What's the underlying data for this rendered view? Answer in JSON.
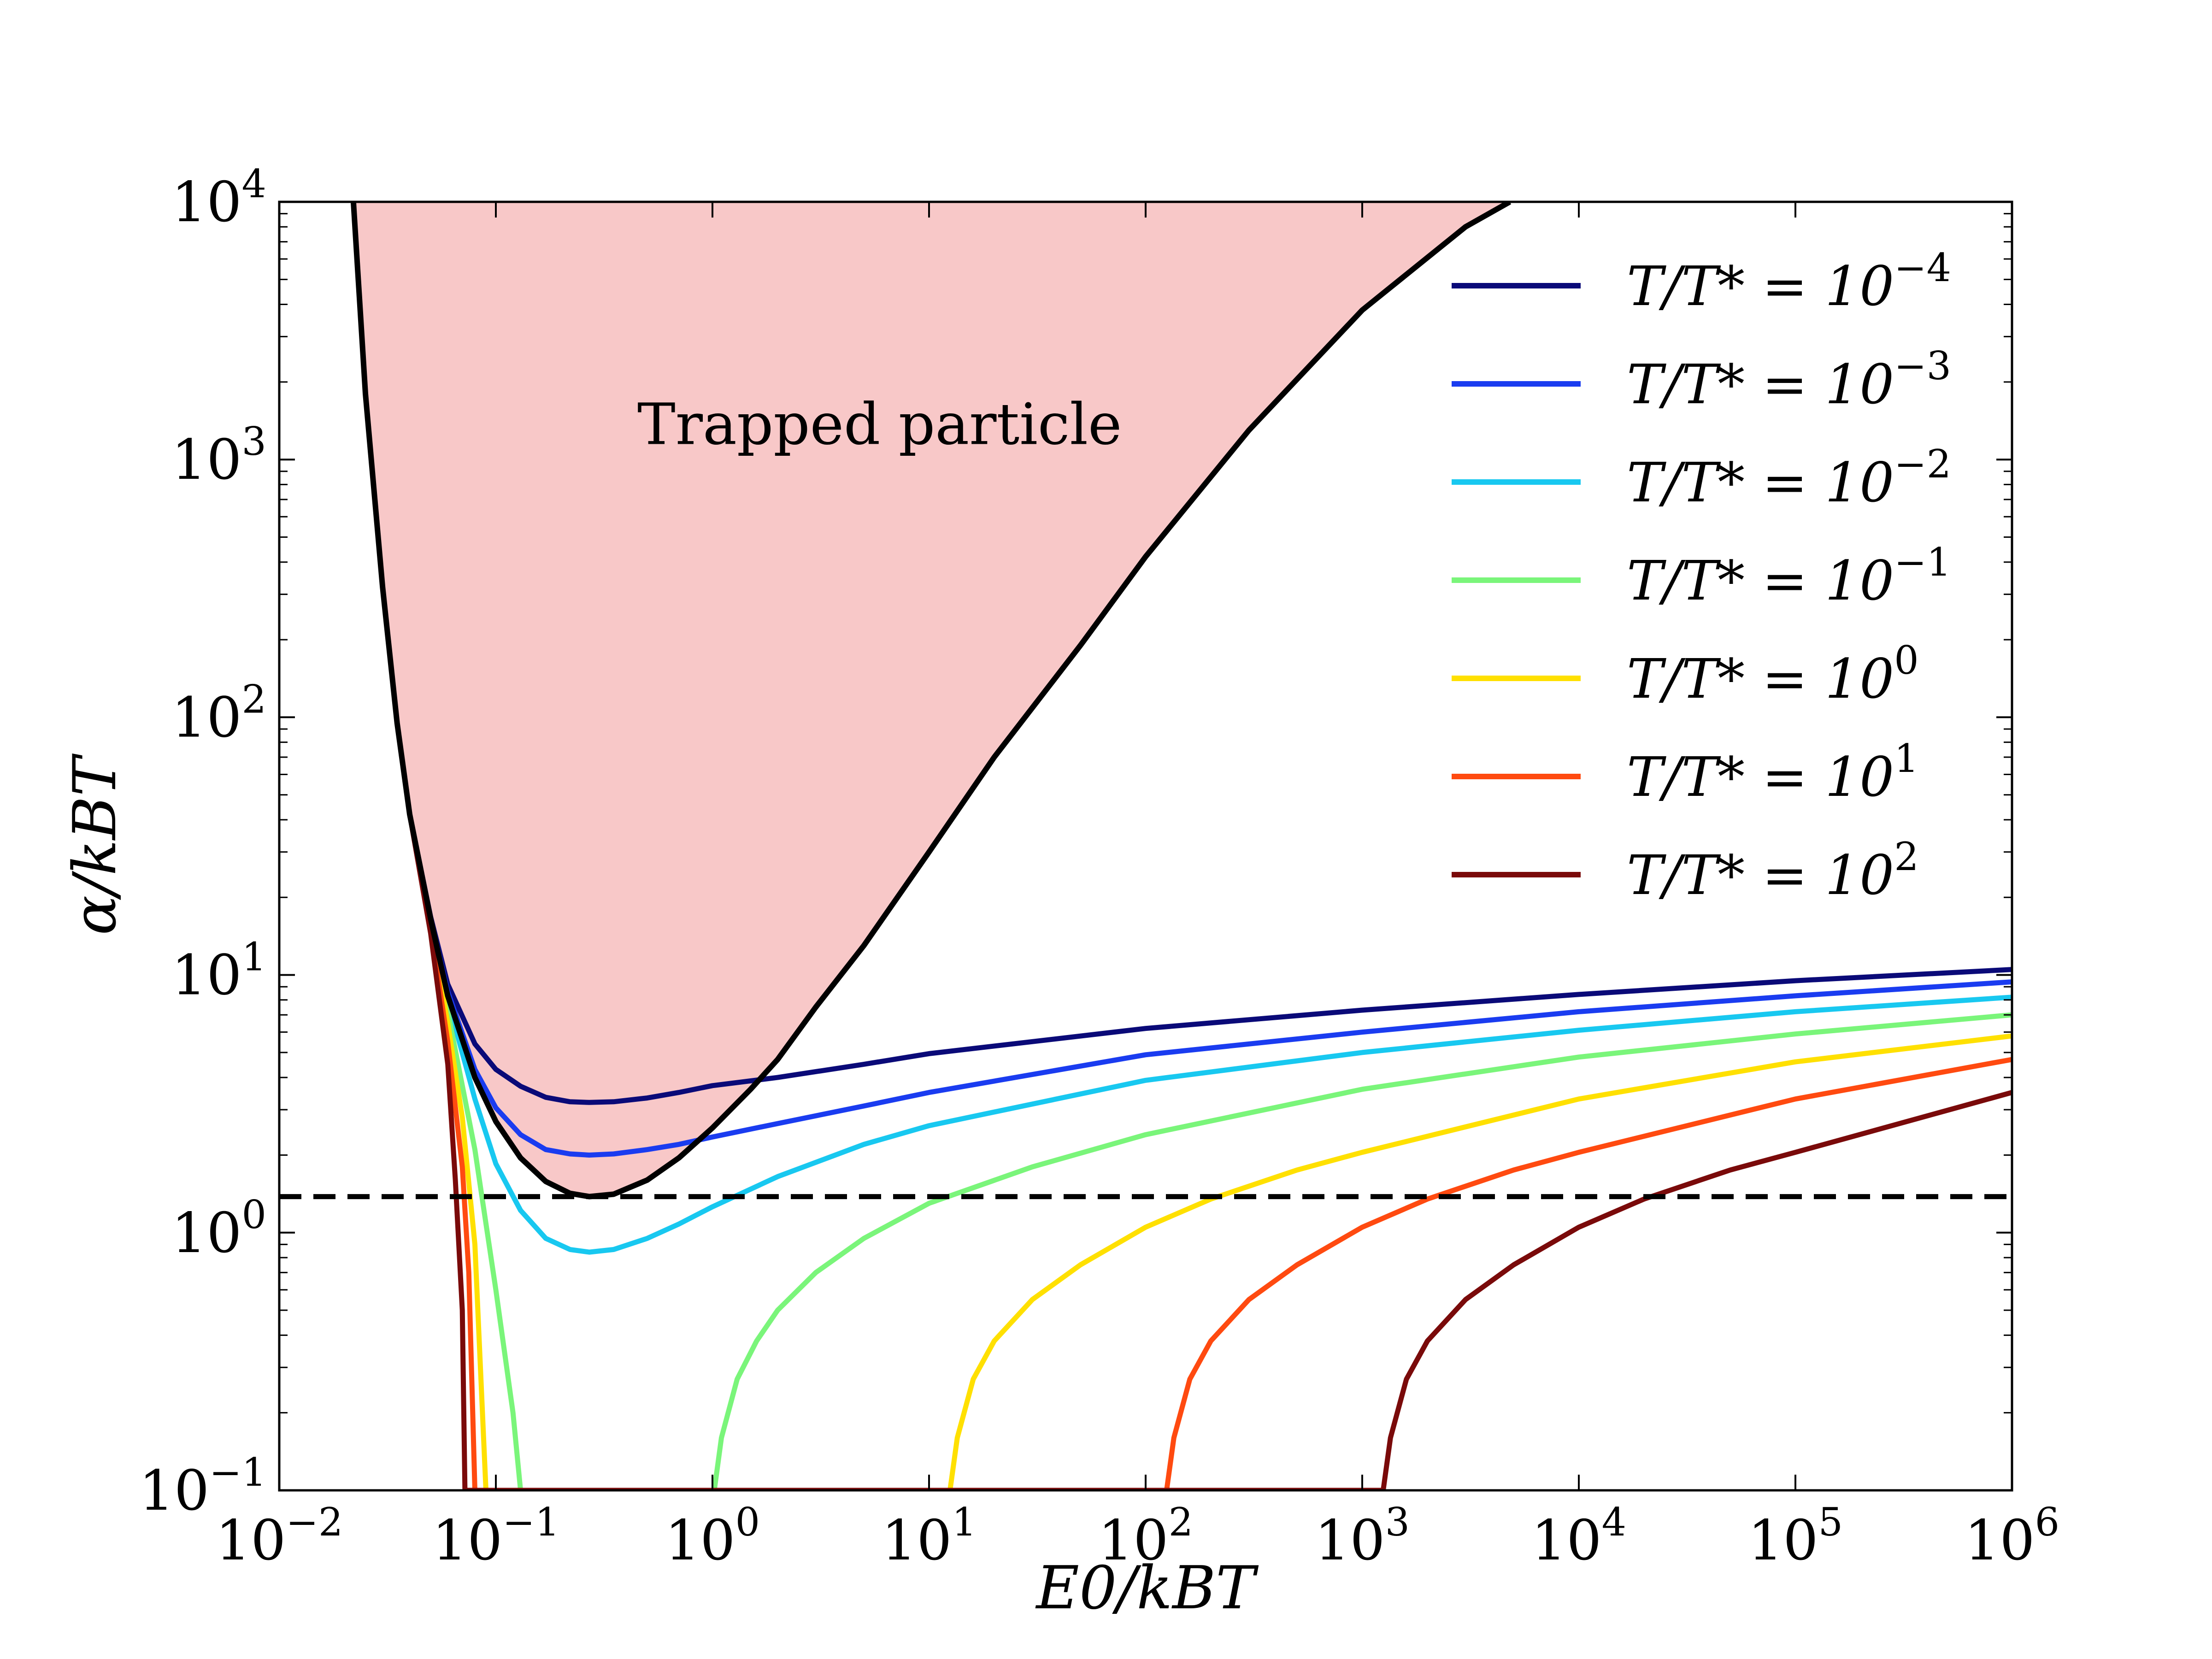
{
  "chart_data": {
    "type": "line",
    "xlabel": "E0/kBT",
    "ylabel": "α/kBT",
    "xscale": "log",
    "yscale": "log",
    "xlim": [
      0.01,
      1000000
    ],
    "ylim": [
      0.1,
      10000
    ],
    "grid": false,
    "legend_position": "top-right",
    "x_ticks": [
      {
        "value": 0.01,
        "base": "10",
        "exp": "−2"
      },
      {
        "value": 0.1,
        "base": "10",
        "exp": "−1"
      },
      {
        "value": 1,
        "base": "10",
        "exp": "0"
      },
      {
        "value": 10,
        "base": "10",
        "exp": "1"
      },
      {
        "value": 100,
        "base": "10",
        "exp": "2"
      },
      {
        "value": 1000,
        "base": "10",
        "exp": "3"
      },
      {
        "value": 10000,
        "base": "10",
        "exp": "4"
      },
      {
        "value": 100000,
        "base": "10",
        "exp": "5"
      },
      {
        "value": 1000000,
        "base": "10",
        "exp": "6"
      }
    ],
    "y_ticks": [
      {
        "value": 0.1,
        "base": "10",
        "exp": "−1"
      },
      {
        "value": 1,
        "base": "10",
        "exp": "0"
      },
      {
        "value": 10,
        "base": "10",
        "exp": "1"
      },
      {
        "value": 100,
        "base": "10",
        "exp": "2"
      },
      {
        "value": 1000,
        "base": "10",
        "exp": "3"
      },
      {
        "value": 10000,
        "base": "10",
        "exp": "4"
      }
    ],
    "annotations": [
      {
        "text": "Trapped particle",
        "x": 0.45,
        "y": 1150
      }
    ],
    "threshold_line": {
      "y": 1.38,
      "style": "dashed",
      "color": "#000000"
    },
    "trapped_region": {
      "fill": "#f8c8c8",
      "boundary_color": "#000000",
      "boundary": [
        [
          0.022,
          10000
        ],
        [
          0.025,
          1800
        ],
        [
          0.03,
          320
        ],
        [
          0.035,
          95
        ],
        [
          0.04,
          42
        ],
        [
          0.05,
          16.5
        ],
        [
          0.06,
          8.3
        ],
        [
          0.08,
          4.0
        ],
        [
          0.1,
          2.7
        ],
        [
          0.13,
          1.95
        ],
        [
          0.17,
          1.58
        ],
        [
          0.22,
          1.42
        ],
        [
          0.27,
          1.38
        ],
        [
          0.35,
          1.41
        ],
        [
          0.5,
          1.6
        ],
        [
          0.7,
          1.95
        ],
        [
          1,
          2.55
        ],
        [
          1.5,
          3.6
        ],
        [
          2,
          4.7
        ],
        [
          3,
          7.5
        ],
        [
          5,
          13
        ],
        [
          10,
          30
        ],
        [
          20,
          70
        ],
        [
          50,
          190
        ],
        [
          100,
          420
        ],
        [
          300,
          1300
        ],
        [
          1000,
          3800
        ],
        [
          3000,
          8000
        ],
        [
          4800,
          10000
        ]
      ]
    },
    "series": [
      {
        "name": "T/T* = 10",
        "name_exp": "−4",
        "color": "#0a0a78",
        "x": [
          0.022,
          0.025,
          0.03,
          0.035,
          0.04,
          0.05,
          0.06,
          0.08,
          0.1,
          0.13,
          0.17,
          0.22,
          0.27,
          0.35,
          0.5,
          0.7,
          1,
          2,
          5,
          10,
          100,
          1000,
          10000,
          100000,
          1000000
        ],
        "y": [
          10000,
          1800,
          320,
          95,
          42,
          16.8,
          9.2,
          5.4,
          4.3,
          3.7,
          3.35,
          3.22,
          3.2,
          3.22,
          3.33,
          3.5,
          3.72,
          4.0,
          4.5,
          4.95,
          6.2,
          7.3,
          8.4,
          9.5,
          10.5
        ]
      },
      {
        "name": "T/T* = 10",
        "name_exp": "−3",
        "color": "#1a3cf0",
        "x": [
          0.022,
          0.025,
          0.03,
          0.035,
          0.04,
          0.05,
          0.06,
          0.08,
          0.1,
          0.13,
          0.17,
          0.22,
          0.27,
          0.35,
          0.5,
          0.7,
          1,
          2,
          5,
          10,
          100,
          1000,
          10000,
          100000,
          1000000
        ],
        "y": [
          10000,
          1800,
          320,
          95,
          42,
          16.5,
          8.6,
          4.3,
          3.05,
          2.4,
          2.1,
          2.02,
          2.0,
          2.02,
          2.1,
          2.2,
          2.35,
          2.65,
          3.1,
          3.5,
          4.9,
          6.0,
          7.2,
          8.3,
          9.4
        ]
      },
      {
        "name": "T/T* = 10",
        "name_exp": "−2",
        "color": "#18c8f0",
        "x": [
          0.022,
          0.025,
          0.03,
          0.035,
          0.04,
          0.05,
          0.06,
          0.08,
          0.1,
          0.13,
          0.17,
          0.22,
          0.27,
          0.35,
          0.5,
          0.7,
          1,
          2,
          5,
          10,
          100,
          1000,
          10000,
          100000,
          1000000
        ],
        "y": [
          10000,
          1800,
          320,
          95,
          42,
          16.3,
          8.0,
          3.3,
          1.85,
          1.22,
          0.95,
          0.86,
          0.84,
          0.86,
          0.95,
          1.08,
          1.26,
          1.65,
          2.2,
          2.6,
          3.9,
          5.0,
          6.1,
          7.2,
          8.2
        ]
      },
      {
        "name": "T/T* = 10",
        "name_exp": "−1",
        "color": "#7af57a",
        "x": [
          0.022,
          0.025,
          0.03,
          0.035,
          0.04,
          0.05,
          0.06,
          0.08,
          0.1,
          0.12,
          0.13,
          1.02,
          1.1,
          1.3,
          1.6,
          2,
          3,
          5,
          10,
          30,
          100,
          1000,
          10000,
          100000,
          1000000
        ],
        "y": [
          10000,
          1800,
          320,
          95,
          42,
          16,
          7.2,
          2.1,
          0.6,
          0.2,
          0.1,
          0.1,
          0.16,
          0.27,
          0.38,
          0.5,
          0.7,
          0.95,
          1.3,
          1.8,
          2.4,
          3.6,
          4.8,
          5.9,
          7.0
        ]
      },
      {
        "name": "T/T* = 10",
        "name_exp": "0",
        "color": "#ffe000",
        "x": [
          0.022,
          0.025,
          0.03,
          0.035,
          0.04,
          0.05,
          0.06,
          0.07,
          0.08,
          0.09,
          12.5,
          13.5,
          16,
          20,
          30,
          50,
          100,
          200,
          500,
          1000,
          10000,
          100000,
          1000000
        ],
        "y": [
          10000,
          1800,
          320,
          95,
          42,
          15.5,
          6.5,
          2.8,
          0.9,
          0.1,
          0.1,
          0.16,
          0.27,
          0.38,
          0.55,
          0.75,
          1.05,
          1.35,
          1.75,
          2.05,
          3.3,
          4.6,
          5.8
        ]
      },
      {
        "name": "T/T* = 10",
        "name_exp": "1",
        "color": "#ff4a10",
        "x": [
          0.022,
          0.025,
          0.03,
          0.035,
          0.04,
          0.05,
          0.06,
          0.07,
          0.075,
          0.08,
          125,
          135,
          160,
          200,
          300,
          500,
          1000,
          2000,
          5000,
          10000,
          100000,
          1000000
        ],
        "y": [
          10000,
          1800,
          320,
          95,
          42,
          15,
          5.5,
          1.8,
          0.7,
          0.1,
          0.1,
          0.16,
          0.27,
          0.38,
          0.55,
          0.75,
          1.05,
          1.35,
          1.75,
          2.05,
          3.3,
          4.7
        ]
      },
      {
        "name": "T/T* = 10",
        "name_exp": "2",
        "color": "#7a0a0a",
        "x": [
          0.022,
          0.025,
          0.03,
          0.035,
          0.04,
          0.05,
          0.06,
          0.065,
          0.07,
          0.072,
          1250,
          1350,
          1600,
          2000,
          3000,
          5000,
          10000,
          20000,
          50000,
          100000,
          1000000
        ],
        "y": [
          10000,
          1800,
          320,
          95,
          42,
          14.5,
          4.5,
          1.6,
          0.5,
          0.1,
          0.1,
          0.16,
          0.27,
          0.38,
          0.55,
          0.75,
          1.05,
          1.35,
          1.75,
          2.05,
          3.5
        ]
      }
    ]
  }
}
